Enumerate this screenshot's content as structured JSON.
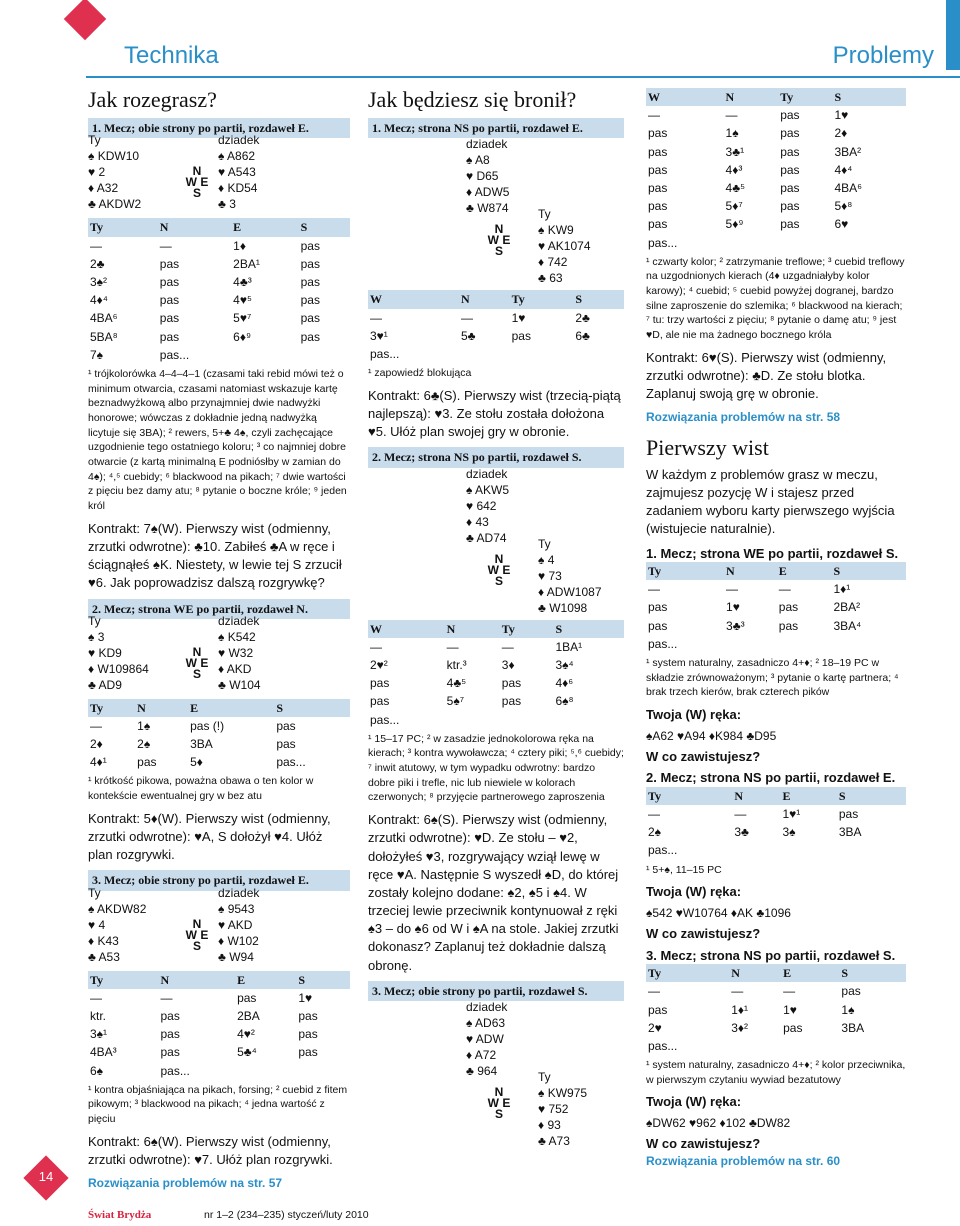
{
  "header": {
    "left": "Technika",
    "right": "Problemy"
  },
  "footer": {
    "magazine": "Świat Brydża",
    "issue": "nr 1–2 (234–235) styczeń/luty 2010",
    "page": "14"
  },
  "col1": {
    "title": "Jak rozegrasz?",
    "p1": {
      "bar": "1. Mecz; obie strony po partii, rozdaweł E.",
      "hand": [
        "Ty",
        "dziadek",
        "♠ KDW10",
        "♠ A862",
        "♥ 2",
        "♥ A543",
        "♦ A32",
        "♦ KD54",
        "♣ AKDW2",
        "♣ 3"
      ],
      "bid_head": [
        "Ty",
        "N",
        "E",
        "S"
      ],
      "bids": [
        [
          "—",
          "—",
          "1♦",
          "pas"
        ],
        [
          "2♣",
          "pas",
          "2BA¹",
          "pas"
        ],
        [
          "3♠²",
          "pas",
          "4♣³",
          "pas"
        ],
        [
          "4♦⁴",
          "pas",
          "4♥⁵",
          "pas"
        ],
        [
          "4BA⁶",
          "pas",
          "5♥⁷",
          "pas"
        ],
        [
          "5BA⁸",
          "pas",
          "6♦⁹",
          "pas"
        ],
        [
          "7♠",
          "pas...",
          "",
          ""
        ]
      ],
      "fn": "¹ trójkolorówka 4–4–4–1 (czasami taki rebid mówi też o minimum otwarcia, czasami natomiast wskazuje kartę beznadwyżkową albo przynajmniej dwie nadwyżki honorowe; wówczas z dokładnie jedną nadwyżką licytuje się 3BA); ² rewers, 5+♣ 4♠, czyli zachęcające uzgodnienie tego ostatniego koloru; ³ co najmniej dobre otwarcie (z kartą minimalną E podniósłby w zamian do 4♠); ⁴,⁵ cuebidy; ⁶ blackwood na pikach; ⁷ dwie wartości z pięciu bez damy atu; ⁸ pytanie o boczne króle; ⁹ jeden król",
      "lead": "Kontrakt: 7♠(W). Pierwszy wist (odmienny, zrzutki odwrotne): ♣10. Zabiłeś ♣A w ręce i ściągnąłeś ♠K. Niestety, w lewie tej S zrzucił ♥6. Jak poprowadzisz dalszą rozgrywkę?"
    },
    "p2": {
      "bar": "2. Mecz; strona WE po partii, rozdaweł N.",
      "hand": [
        "Ty",
        "dziadek",
        "♠ 3",
        "♠ K542",
        "♥ KD9",
        "♥ W32",
        "♦ W109864",
        "♦ AKD",
        "♣ AD9",
        "♣ W104"
      ],
      "bid_head": [
        "Ty",
        "N",
        "E",
        "S"
      ],
      "bids": [
        [
          "—",
          "1♠",
          "pas (!)",
          "pas"
        ],
        [
          "2♦",
          "2♠",
          "3BA",
          "pas"
        ],
        [
          "4♦¹",
          "pas",
          "5♦",
          "pas..."
        ]
      ],
      "fn": "¹ krótkość pikowa, poważna obawa o ten kolor w kontekście ewentualnej gry w bez atu",
      "lead": "Kontrakt: 5♦(W). Pierwszy wist (odmienny, zrzutki odwrotne): ♥A, S dołożył ♥4. Ułóż plan rozgrywki."
    },
    "p3": {
      "bar": "3. Mecz; obie strony po partii, rozdaweł E.",
      "hand": [
        "Ty",
        "dziadek",
        "♠ AKDW82",
        "♠ 9543",
        "♥ 4",
        "♥ AKD",
        "♦ K43",
        "♦ W102",
        "♣ A53",
        "♣ W94"
      ],
      "bid_head": [
        "Ty",
        "N",
        "E",
        "S"
      ],
      "bids": [
        [
          "—",
          "—",
          "pas",
          "1♥"
        ],
        [
          "ktr.",
          "pas",
          "2BA",
          "pas"
        ],
        [
          "3♠¹",
          "pas",
          "4♥²",
          "pas"
        ],
        [
          "4BA³",
          "pas",
          "5♣⁴",
          "pas"
        ],
        [
          "6♠",
          "pas...",
          "",
          ""
        ]
      ],
      "fn": "¹ kontra objaśniająca na pikach, forsing; ² cuebid z fitem pikowym; ³ blackwood na pikach; ⁴ jedna wartość z pięciu",
      "lead": "Kontrakt: 6♠(W). Pierwszy wist (odmienny, zrzutki odwrotne): ♥7. Ułóż plan rozgrywki.",
      "link": "Rozwiązania problemów na str. 57"
    }
  },
  "col2": {
    "title": "Jak będziesz się bronił?",
    "p1": {
      "bar": "1. Mecz; strona NS po partii, rozdaweł E.",
      "dummy": [
        "dziadek",
        "♠ A8",
        "♥ D65",
        "♦ ADW5",
        "♣ W874"
      ],
      "you": [
        "Ty",
        "♠ KW9",
        "♥ AK1074",
        "♦ 742",
        "♣ 63"
      ],
      "bid_head": [
        "W",
        "N",
        "Ty",
        "S"
      ],
      "bids": [
        [
          "—",
          "—",
          "1♥",
          "2♣"
        ],
        [
          "3♥¹",
          "5♣",
          "pas",
          "6♣"
        ],
        [
          "pas...",
          "",
          "",
          ""
        ]
      ],
      "fn": "¹ zapowiedź blokująca",
      "lead": "Kontrakt: 6♣(S). Pierwszy wist (trzecią-piątą najlepszą): ♥3. Ze stołu została dołożona ♥5. Ułóż plan swojej gry w obronie."
    },
    "p2": {
      "bar": "2. Mecz; strona NS po partii, rozdaweł S.",
      "dummy": [
        "dziadek",
        "♠ AKW5",
        "♥ 642",
        "♦ 43",
        "♣ AD74"
      ],
      "you": [
        "Ty",
        "♠ 4",
        "♥ 73",
        "♦ ADW1087",
        "♣ W1098"
      ],
      "bid_head": [
        "W",
        "N",
        "Ty",
        "S"
      ],
      "bids": [
        [
          "—",
          "—",
          "—",
          "1BA¹"
        ],
        [
          "2♥²",
          "ktr.³",
          "3♦",
          "3♠⁴"
        ],
        [
          "pas",
          "4♣⁵",
          "pas",
          "4♦⁶"
        ],
        [
          "pas",
          "5♠⁷",
          "pas",
          "6♠⁸"
        ],
        [
          "pas...",
          "",
          "",
          ""
        ]
      ],
      "fn": "¹ 15–17 PC; ² w zasadzie jednokolorowa ręka na kierach; ³ kontra wywoławcza; ⁴ cztery piki; ⁵,⁶ cuebidy; ⁷ inwit atutowy, w tym wypadku odwrotny: bardzo dobre piki i trefle, nic lub niewiele w kolorach czerwonych; ⁸ przyjęcie partnerowego zaproszenia",
      "lead": "Kontrakt: 6♠(S). Pierwszy wist (odmienny, zrzutki odwrotne): ♥D. Ze stołu – ♥2, dołożyłeś ♥3, rozgrywający wziął lewę w ręce ♥A. Następnie S wyszedł ♠D, do której zostały kolejno dodane: ♠2, ♠5 i ♠4. W trzeciej lewie przeciwnik kontynuował z ręki ♠3 – do ♠6 od W i ♠A na stole. Jakiej zrzutki dokonasz? Zaplanuj też dokładnie dalszą obronę."
    },
    "p3": {
      "bar": "3. Mecz; obie strony po partii, rozdaweł S.",
      "dummy": [
        "dziadek",
        "♠ AD63",
        "♥ ADW",
        "♦ A72",
        "♣ 964"
      ],
      "you": [
        "Ty",
        "♠ KW975",
        "♥ 752",
        "♦ 93",
        "♣ A73"
      ]
    }
  },
  "col3": {
    "bid_head": [
      "W",
      "N",
      "Ty",
      "S"
    ],
    "bids": [
      [
        "—",
        "—",
        "pas",
        "1♥"
      ],
      [
        "pas",
        "1♠",
        "pas",
        "2♦"
      ],
      [
        "pas",
        "3♣¹",
        "pas",
        "3BA²"
      ],
      [
        "pas",
        "4♦³",
        "pas",
        "4♦⁴"
      ],
      [
        "pas",
        "4♣⁵",
        "pas",
        "4BA⁶"
      ],
      [
        "pas",
        "5♦⁷",
        "pas",
        "5♦⁸"
      ],
      [
        "pas",
        "5♦⁹",
        "pas",
        "6♥"
      ],
      [
        "pas...",
        "",
        "",
        ""
      ]
    ],
    "fn": "¹ czwarty kolor; ² zatrzymanie treflowe; ³ cuebid treflowy na uzgodnionych kierach (4♦ uzgadniałyby kolor karowy); ⁴ cuebid; ⁵ cuebid powyżej dogranej, bardzo silne zaproszenie do szlemika; ⁶ blackwood na kierach; ⁷ tu: trzy wartości z pięciu; ⁸ pytanie o damę atu; ⁹ jest ♥D, ale nie ma żadnego bocznego króla",
    "lead": "Kontrakt: 6♥(S). Pierwszy wist (odmienny, zrzutki odwrotne): ♣D. Ze stołu blotka. Zaplanuj swoją grę w obronie.",
    "link1": "Rozwiązania problemów na str. 58",
    "title": "Pierwszy wist",
    "intro": "W każdym z problemów grasz w meczu, zajmujesz pozycję W i stajesz przed zadaniem wyboru karty pierwszego wyjścia (wistujecie naturalnie).",
    "q1": {
      "title": "1. Mecz; strona WE po partii, rozdaweł S.",
      "bid_head": [
        "Ty",
        "N",
        "E",
        "S"
      ],
      "bids": [
        [
          "—",
          "—",
          "—",
          "1♦¹"
        ],
        [
          "pas",
          "1♥",
          "pas",
          "2BA²"
        ],
        [
          "pas",
          "3♣³",
          "pas",
          "3BA⁴"
        ],
        [
          "pas...",
          "",
          "",
          ""
        ]
      ],
      "fn": "¹ system naturalny, zasadniczo 4+♦; ² 18–19 PC w składzie zrównoważonym; ³ pytanie o kartę partnera; ⁴ brak trzech kierów, brak czterech pików",
      "hand_label": "Twoja (W) ręka:",
      "hand": "♠A62 ♥A94 ♦K984 ♣D95",
      "q": "W co zawistujesz?"
    },
    "q2": {
      "title": "2. Mecz; strona NS po partii, rozdaweł E.",
      "bid_head": [
        "Ty",
        "N",
        "E",
        "S"
      ],
      "bids": [
        [
          "—",
          "—",
          "1♥¹",
          "pas"
        ],
        [
          "2♠",
          "3♣",
          "3♠",
          "3BA"
        ],
        [
          "pas...",
          "",
          "",
          ""
        ]
      ],
      "fn": "¹ 5+♠, 11–15 PC",
      "hand_label": "Twoja (W) ręka:",
      "hand": "♠542 ♥W10764 ♦AK ♣1096",
      "q": "W co zawistujesz?"
    },
    "q3": {
      "title": "3. Mecz; strona NS po partii, rozdaweł S.",
      "bid_head": [
        "Ty",
        "N",
        "E",
        "S"
      ],
      "bids": [
        [
          "—",
          "—",
          "—",
          "pas"
        ],
        [
          "pas",
          "1♦¹",
          "1♥",
          "1♠"
        ],
        [
          "2♥",
          "3♦²",
          "pas",
          "3BA"
        ],
        [
          "pas...",
          "",
          "",
          ""
        ]
      ],
      "fn": "¹ system naturalny, zasadniczo 4+♦; ² kolor przeciwnika, w pierwszym czytaniu wywiad bezatutowy",
      "hand_label": "Twoja (W) ręka:",
      "hand": "♠DW62 ♥962 ♦102 ♣DW82",
      "q": "W co zawistujesz?",
      "link": "Rozwiązania problemów na str. 60"
    }
  }
}
